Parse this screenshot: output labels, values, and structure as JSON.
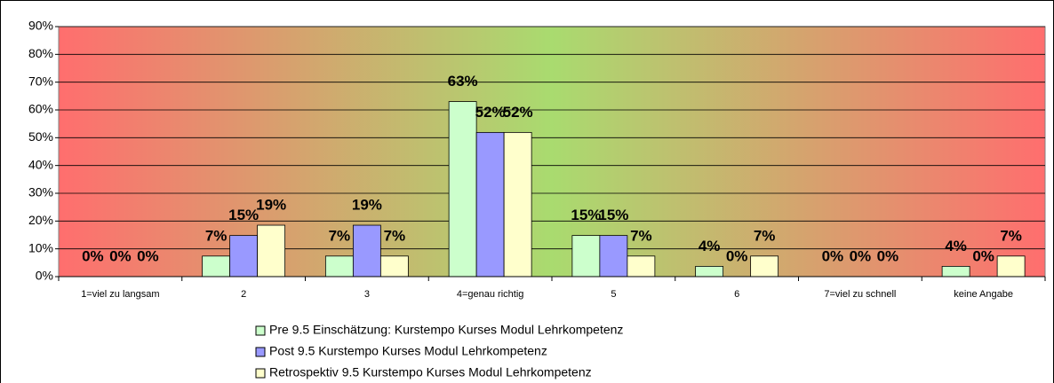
{
  "chart_data": {
    "type": "bar",
    "categories": [
      "1=viel zu langsam",
      "2",
      "3",
      "4=genau richtig",
      "5",
      "6",
      "7=viel zu schnell",
      "keine Angabe"
    ],
    "series": [
      {
        "name": "Pre 9.5 Einschätzung: Kurstempo Kurses Modul Lehrkompetenz",
        "color": "#ccffcc",
        "values": [
          0,
          7.4,
          7.4,
          63,
          14.8,
          3.7,
          0,
          3.7
        ],
        "value_labels": [
          "0%",
          "7%",
          "7%",
          "63%",
          "15%",
          "4%",
          "0%",
          "4%"
        ]
      },
      {
        "name": "Post 9.5 Kurstempo Kurses Modul Lehrkompetenz",
        "color": "#9999ff",
        "values": [
          0,
          14.8,
          18.5,
          51.9,
          14.8,
          0,
          0,
          0
        ],
        "value_labels": [
          "0%",
          "15%",
          "19%",
          "52%",
          "15%",
          "0%",
          "0%",
          "0%"
        ]
      },
      {
        "name": "Retrospektiv 9.5 Kurstempo Kurses Modul Lehrkompetenz",
        "color": "#ffffcc",
        "values": [
          0,
          18.5,
          7.4,
          51.9,
          7.4,
          7.4,
          0,
          7.4
        ],
        "value_labels": [
          "0%",
          "19%",
          "7%",
          "52%",
          "7%",
          "7%",
          "0%",
          "7%"
        ]
      }
    ],
    "ylim": [
      0,
      90
    ],
    "yticks": [
      {
        "value": 0,
        "label": "0%"
      },
      {
        "value": 10,
        "label": "10%"
      },
      {
        "value": 20,
        "label": "20%"
      },
      {
        "value": 30,
        "label": "30%"
      },
      {
        "value": 40,
        "label": "40%"
      },
      {
        "value": 50,
        "label": "50%"
      },
      {
        "value": 60,
        "label": "60%"
      },
      {
        "value": 70,
        "label": "70%"
      },
      {
        "value": 80,
        "label": "80%"
      },
      {
        "value": 90,
        "label": "90%"
      }
    ],
    "grid": true
  }
}
